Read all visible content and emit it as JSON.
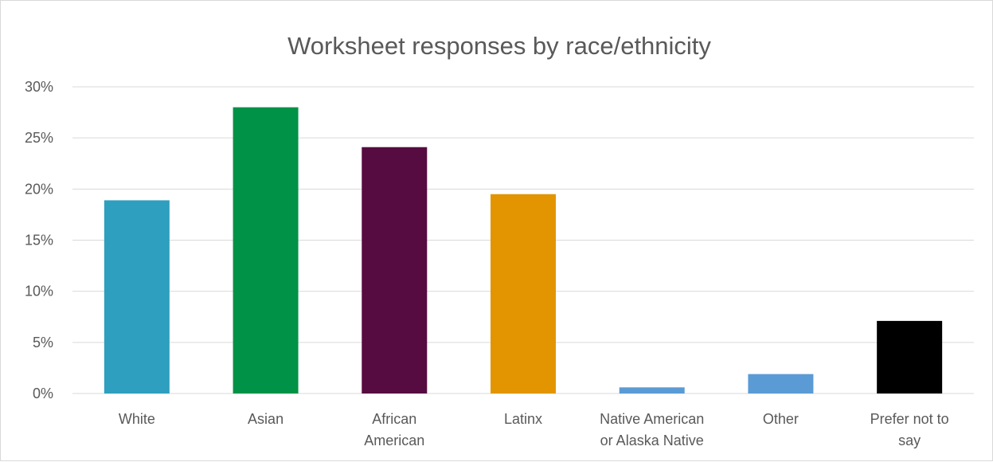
{
  "chart_data": {
    "type": "bar",
    "title": "Worksheet responses by race/ethnicity",
    "xlabel": "",
    "ylabel": "",
    "ylim": [
      0,
      30
    ],
    "yticks": [
      "0%",
      "5%",
      "10%",
      "15%",
      "20%",
      "25%",
      "30%"
    ],
    "categories": [
      [
        "White"
      ],
      [
        "Asian"
      ],
      [
        "African",
        "American"
      ],
      [
        "Latinx"
      ],
      [
        "Native American",
        "or Alaska Native"
      ],
      [
        "Other"
      ],
      [
        "Prefer not to",
        "say"
      ]
    ],
    "values": [
      18.9,
      28.0,
      24.1,
      19.5,
      0.6,
      1.9,
      7.1
    ],
    "colors": [
      "#2e9fbe",
      "#009247",
      "#560c40",
      "#e29500",
      "#5b9bd5",
      "#5b9bd5",
      "#000000"
    ],
    "grid": true,
    "legend": "none"
  }
}
